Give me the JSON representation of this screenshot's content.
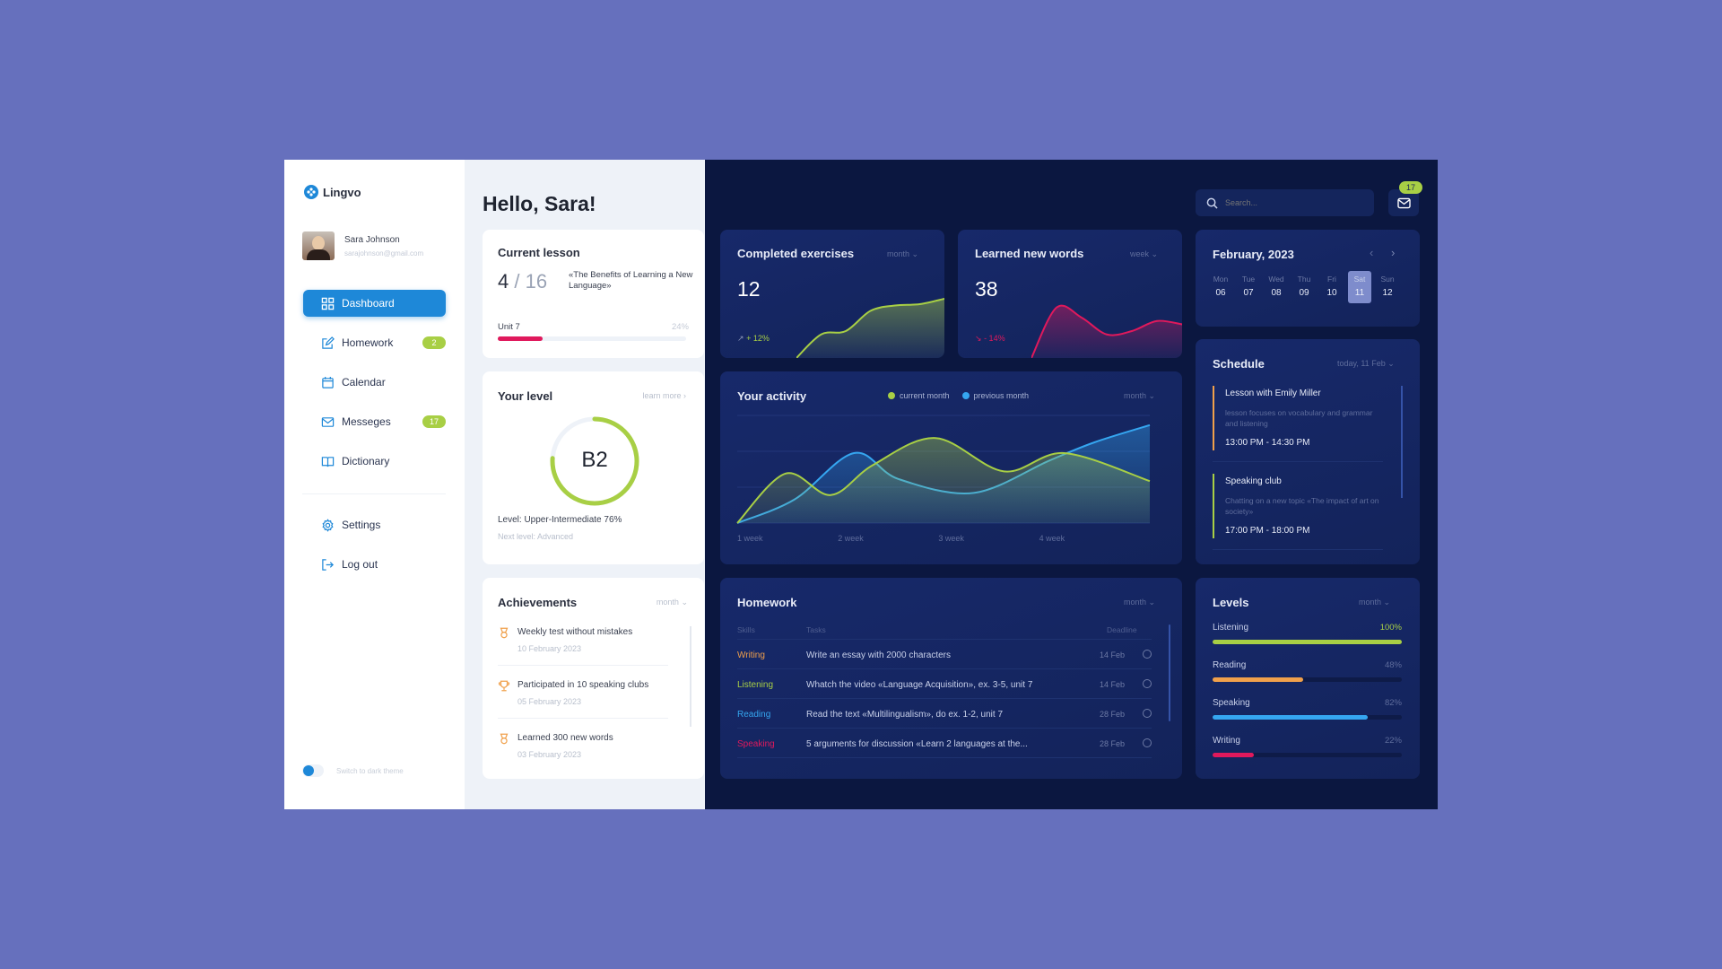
{
  "app": {
    "name": "Lingvo",
    "brand_color": "#1e88d8"
  },
  "user": {
    "name": "Sara Johnson",
    "email": "sarajohnson@gmail.com"
  },
  "sidebar": {
    "items": [
      {
        "label": "Dashboard",
        "icon": "grid-icon",
        "active": true
      },
      {
        "label": "Homework",
        "icon": "edit-icon",
        "badge": "2"
      },
      {
        "label": "Calendar",
        "icon": "calendar-icon"
      },
      {
        "label": "Messeges",
        "icon": "mail-icon",
        "badge": "17"
      },
      {
        "label": "Dictionary",
        "icon": "book-icon"
      }
    ],
    "bottom": [
      {
        "label": "Settings",
        "icon": "gear-icon"
      },
      {
        "label": "Log out",
        "icon": "logout-icon"
      }
    ],
    "theme_toggle": "Switch to dark theme"
  },
  "greeting": "Hello, Sara!",
  "current_lesson": {
    "title": "Current lesson",
    "current": "4",
    "total": "/ 16",
    "lesson_name": "«The Benefits of Learning a New Language»",
    "unit": "Unit 7",
    "progress_label": "24%",
    "progress": 24
  },
  "level": {
    "title": "Your level",
    "learn_more": "learn more",
    "grade": "B2",
    "progress": 76,
    "level_text": "Level: Upper-Intermediate 76%",
    "next_level": "Next level: Advanced"
  },
  "achievements": {
    "title": "Achievements",
    "period": "month",
    "items": [
      {
        "title": "Weekly test without mistakes",
        "date": "10 February 2023",
        "icon": "medal-icon"
      },
      {
        "title": "Participated in 10 speaking clubs",
        "date": "05 February 2023",
        "icon": "trophy-icon"
      },
      {
        "title": "Learned 300 new words",
        "date": "03 February 2023",
        "icon": "medal-icon"
      }
    ]
  },
  "completed": {
    "title": "Completed exercises",
    "period": "month",
    "value": "12",
    "change": "+ 12%",
    "trend": "up",
    "sparkline": [
      0,
      35,
      40,
      70,
      78,
      80,
      88
    ]
  },
  "words": {
    "title": "Learned new words",
    "period": "week",
    "value": "38",
    "change": "- 14%",
    "trend": "down",
    "sparkline": [
      0,
      75,
      60,
      35,
      40,
      55,
      50
    ]
  },
  "activity": {
    "title": "Your activity",
    "period": "month"
  },
  "chart_data": {
    "type": "area",
    "x_ticks": [
      "1 week",
      "2 week",
      "3 week",
      "4 week"
    ],
    "xlim": [
      1,
      5.1
    ],
    "ylim": [
      0,
      100
    ],
    "grid": true,
    "legend": "top",
    "series": [
      {
        "name": "current month",
        "color": "#a8cf45",
        "x": [
          1,
          1.48,
          1.93,
          2.35,
          2.97,
          3.65,
          4.25,
          5.1
        ],
        "y": [
          0,
          46,
          26,
          54,
          79,
          48,
          65,
          39
        ]
      },
      {
        "name": "previous month",
        "color": "#35a6f0",
        "x": [
          1,
          1.57,
          2.16,
          2.6,
          3.35,
          4.1,
          4.55,
          5.1
        ],
        "y": [
          0,
          22,
          65,
          41,
          28,
          58,
          75,
          91
        ]
      }
    ]
  },
  "search": {
    "placeholder": "Search..."
  },
  "mail_badge": "17",
  "calendar": {
    "title": "February, 2023",
    "days": [
      {
        "name": "Mon",
        "num": "06"
      },
      {
        "name": "Tue",
        "num": "07"
      },
      {
        "name": "Wed",
        "num": "08"
      },
      {
        "name": "Thu",
        "num": "09"
      },
      {
        "name": "Fri",
        "num": "10"
      },
      {
        "name": "Sat",
        "num": "11",
        "selected": true
      },
      {
        "name": "Sun",
        "num": "12"
      }
    ]
  },
  "schedule": {
    "title": "Schedule",
    "period": "today, 11 Feb",
    "items": [
      {
        "title": "Lesson with Emily Miller",
        "desc": "lesson focuses on vocabulary and grammar and listening",
        "time": "13:00 PM - 14:30 PM",
        "color": "#f0a04b"
      },
      {
        "title": "Speaking club",
        "desc": "Chatting on a new topic «The impact of art on society»",
        "time": "17:00 PM - 18:00 PM",
        "color": "#a8cf45"
      }
    ]
  },
  "homework": {
    "title": "Homework",
    "period": "month",
    "columns": [
      "Skills",
      "Tasks",
      "Deadline"
    ],
    "rows": [
      {
        "skill": "Writing",
        "color": "#f0a04b",
        "task": "Write an essay with 2000 characters",
        "deadline": "14 Feb"
      },
      {
        "skill": "Listening",
        "color": "#a8cf45",
        "task": "Whatch the video «Language Acquisition», ex. 3-5, unit 7",
        "deadline": "14 Feb"
      },
      {
        "skill": "Reading",
        "color": "#35a6f0",
        "task": "Read the text «Multilingualism», do ex. 1-2, unit 7",
        "deadline": "28 Feb"
      },
      {
        "skill": "Speaking",
        "color": "#e0195c",
        "task": "5 arguments for discussion «Learn 2 languages at the...",
        "deadline": "28 Feb"
      }
    ]
  },
  "levels": {
    "title": "Levels",
    "period": "month",
    "items": [
      {
        "label": "Listening",
        "value": "100%",
        "pct": 100,
        "color": "#a8cf45"
      },
      {
        "label": "Reading",
        "value": "48%",
        "pct": 48,
        "color": "#f0a04b"
      },
      {
        "label": "Speaking",
        "value": "82%",
        "pct": 82,
        "color": "#35a6f0"
      },
      {
        "label": "Writing",
        "value": "22%",
        "pct": 22,
        "color": "#e0195c"
      }
    ]
  }
}
